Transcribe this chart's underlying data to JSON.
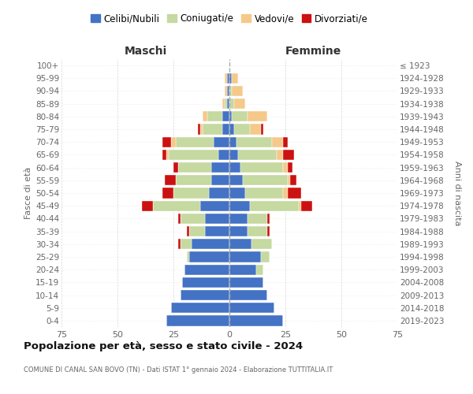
{
  "age_groups": [
    "0-4",
    "5-9",
    "10-14",
    "15-19",
    "20-24",
    "25-29",
    "30-34",
    "35-39",
    "40-44",
    "45-49",
    "50-54",
    "55-59",
    "60-64",
    "65-69",
    "70-74",
    "75-79",
    "80-84",
    "85-89",
    "90-94",
    "95-99",
    "100+"
  ],
  "birth_years": [
    "2019-2023",
    "2014-2018",
    "2009-2013",
    "2004-2008",
    "1999-2003",
    "1994-1998",
    "1989-1993",
    "1984-1988",
    "1979-1983",
    "1974-1978",
    "1969-1973",
    "1964-1968",
    "1959-1963",
    "1954-1958",
    "1949-1953",
    "1944-1948",
    "1939-1943",
    "1934-1938",
    "1929-1933",
    "1924-1928",
    "≤ 1923"
  ],
  "colors": {
    "celibi": "#4472C4",
    "coniugati": "#C5D9A0",
    "vedovi": "#F5C98A",
    "divorziati": "#CC1111"
  },
  "maschi": {
    "celibi": [
      28,
      26,
      22,
      21,
      20,
      18,
      17,
      11,
      11,
      13,
      9,
      8,
      8,
      5,
      7,
      3,
      3,
      1,
      1,
      1,
      0
    ],
    "coniugati": [
      0,
      0,
      0,
      0,
      0,
      1,
      5,
      7,
      11,
      21,
      16,
      16,
      15,
      22,
      17,
      9,
      7,
      1,
      0,
      0,
      0
    ],
    "vedovi": [
      0,
      0,
      0,
      0,
      0,
      0,
      0,
      0,
      0,
      0,
      0,
      0,
      0,
      1,
      2,
      1,
      2,
      1,
      1,
      1,
      0
    ],
    "divorziati": [
      0,
      0,
      0,
      0,
      0,
      0,
      1,
      1,
      1,
      5,
      5,
      5,
      2,
      2,
      4,
      1,
      0,
      0,
      0,
      0,
      0
    ]
  },
  "femmine": {
    "nubili": [
      24,
      20,
      17,
      15,
      12,
      14,
      10,
      8,
      8,
      9,
      7,
      6,
      5,
      4,
      3,
      2,
      1,
      0,
      0,
      1,
      0
    ],
    "coniugate": [
      0,
      0,
      0,
      0,
      3,
      4,
      9,
      9,
      9,
      22,
      17,
      20,
      19,
      17,
      16,
      7,
      7,
      2,
      1,
      0,
      0
    ],
    "vedove": [
      0,
      0,
      0,
      0,
      0,
      0,
      0,
      0,
      0,
      1,
      2,
      1,
      2,
      3,
      5,
      5,
      9,
      5,
      5,
      3,
      0
    ],
    "divorziate": [
      0,
      0,
      0,
      0,
      0,
      0,
      0,
      1,
      1,
      5,
      6,
      3,
      2,
      5,
      2,
      1,
      0,
      0,
      0,
      0,
      0
    ]
  },
  "title": "Popolazione per età, sesso e stato civile - 2024",
  "subtitle": "COMUNE DI CANAL SAN BOVO (TN) - Dati ISTAT 1° gennaio 2024 - Elaborazione TUTTITALIA.IT",
  "maschi_label": "Maschi",
  "femmine_label": "Femmine",
  "ylabel_left": "Fasce di età",
  "ylabel_right": "Anni di nascita",
  "legend_labels": [
    "Celibi/Nubili",
    "Coniugati/e",
    "Vedovi/e",
    "Divorziati/e"
  ],
  "xlim": 75,
  "bg_color": "#FFFFFF",
  "grid_color": "#CCCCCC",
  "text_color": "#666666",
  "title_color": "#111111"
}
